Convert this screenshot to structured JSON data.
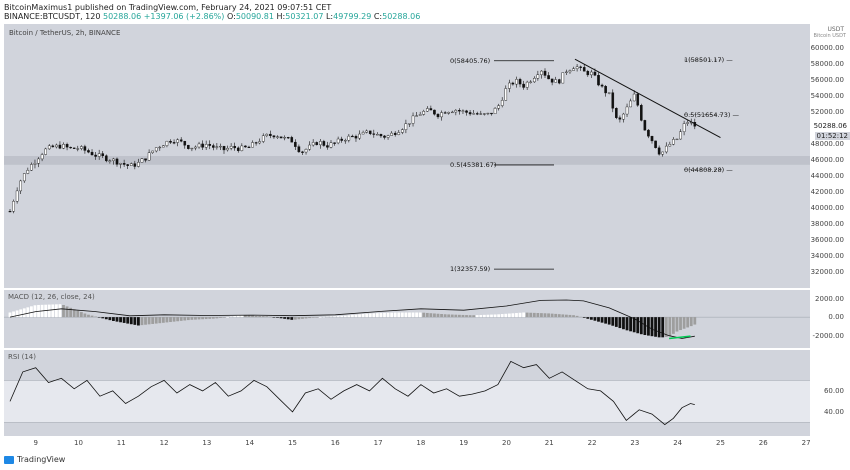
{
  "header": {
    "line1": "BitcoinMaximus1 published on TradingView.com, February 24, 2021 09:07:51 CET",
    "symbol": "BINANCE:BTCUSDT, 120",
    "last": "50288.06",
    "change": "+1397.06 (+2.86%)",
    "o_label": "O:",
    "o": "50090.81",
    "h_label": "H:",
    "h": "50321.07",
    "l_label": "L:",
    "l": "49799.29",
    "c_label": "C:",
    "c": "50288.06"
  },
  "price_pane": {
    "symbol_label": "Bitcoin / TetherUS, 2h, BINANCE",
    "unit": "USDT",
    "unit_sub": "Bitcoin USDT",
    "current_price": "50288.06",
    "timer": "01:52:12",
    "fib_labels": [
      "0(58405.76)",
      "0.5(45381.67)",
      "1(32357.59)",
      "1(58501.17)",
      "0.5(51654.73)",
      "0(44808.28)"
    ]
  },
  "macd_pane": {
    "label": "MACD (12, 26, close, 24)"
  },
  "rsi_pane": {
    "label": "RSI (14)"
  },
  "footer": {
    "brand": "TradingView"
  },
  "colors": {
    "up": "#ffffff",
    "down": "#111111",
    "pane_bg": "#d1d4dc",
    "band": "#e6e8ee",
    "accent_green": "#00c853"
  },
  "chart_data": [
    {
      "type": "candlestick",
      "title": "Bitcoin / TetherUS, 2h, BINANCE",
      "ylabel": "USDT",
      "ylim": [
        30500,
        62500
      ],
      "y_ticks": [
        32000,
        34000,
        36000,
        38000,
        40000,
        42000,
        44000,
        46000,
        48000,
        52000,
        54000,
        56000,
        58000,
        60000
      ],
      "x_ticks": [
        "9",
        "10",
        "11",
        "12",
        "13",
        "14",
        "15",
        "16",
        "17",
        "18",
        "19",
        "20",
        "21",
        "22",
        "23",
        "24",
        "25",
        "26",
        "27"
      ],
      "support_zone": [
        45400,
        46500
      ],
      "fib_levels_left": [
        {
          "label": "0(58405.76)",
          "value": 58405.76
        },
        {
          "label": "0.5(45381.67)",
          "value": 45381.67
        },
        {
          "label": "1(32357.59)",
          "value": 32357.59
        }
      ],
      "fib_levels_right": [
        {
          "label": "1(58501.17)",
          "value": 58501.17
        },
        {
          "label": "0.5(51654.73)",
          "value": 51654.73
        },
        {
          "label": "0(44808.28)",
          "value": 44808.28
        }
      ],
      "trendline": {
        "from": {
          "day": 21.6,
          "price": 58600
        },
        "to": {
          "day": 25.0,
          "price": 48800
        }
      },
      "close_path": [
        [
          8.4,
          39600
        ],
        [
          8.6,
          43000
        ],
        [
          8.8,
          44800
        ],
        [
          9.0,
          46000
        ],
        [
          9.2,
          47200
        ],
        [
          9.4,
          47600
        ],
        [
          9.6,
          47800
        ],
        [
          9.8,
          47400
        ],
        [
          10.0,
          47500
        ],
        [
          10.2,
          47100
        ],
        [
          10.4,
          46600
        ],
        [
          10.6,
          46300
        ],
        [
          10.8,
          46000
        ],
        [
          11.0,
          45600
        ],
        [
          11.2,
          45200
        ],
        [
          11.4,
          45600
        ],
        [
          11.6,
          46400
        ],
        [
          11.8,
          47500
        ],
        [
          12.0,
          48100
        ],
        [
          12.2,
          48600
        ],
        [
          12.4,
          48200
        ],
        [
          12.6,
          47600
        ],
        [
          12.8,
          47700
        ],
        [
          13.0,
          48000
        ],
        [
          13.2,
          47500
        ],
        [
          13.4,
          47300
        ],
        [
          13.6,
          47600
        ],
        [
          13.8,
          47400
        ],
        [
          14.0,
          47600
        ],
        [
          14.2,
          48400
        ],
        [
          14.4,
          49000
        ],
        [
          14.6,
          49200
        ],
        [
          14.8,
          48700
        ],
        [
          15.0,
          48400
        ],
        [
          15.2,
          47000
        ],
        [
          15.4,
          47600
        ],
        [
          15.6,
          48300
        ],
        [
          15.8,
          47800
        ],
        [
          16.0,
          48100
        ],
        [
          16.2,
          48700
        ],
        [
          16.4,
          48900
        ],
        [
          16.6,
          49100
        ],
        [
          16.8,
          49500
        ],
        [
          17.0,
          49100
        ],
        [
          17.2,
          48900
        ],
        [
          17.4,
          49500
        ],
        [
          17.6,
          50200
        ],
        [
          17.8,
          51100
        ],
        [
          18.0,
          51900
        ],
        [
          18.2,
          52200
        ],
        [
          18.4,
          51700
        ],
        [
          18.6,
          52200
        ],
        [
          18.8,
          52300
        ],
        [
          19.0,
          52000
        ],
        [
          19.2,
          51900
        ],
        [
          19.4,
          51600
        ],
        [
          19.6,
          51700
        ],
        [
          19.8,
          52600
        ],
        [
          20.0,
          55000
        ],
        [
          20.2,
          55900
        ],
        [
          20.4,
          55300
        ],
        [
          20.6,
          56200
        ],
        [
          20.8,
          57400
        ],
        [
          21.0,
          56100
        ],
        [
          21.2,
          55700
        ],
        [
          21.4,
          57200
        ],
        [
          21.6,
          57800
        ],
        [
          21.8,
          57000
        ],
        [
          22.0,
          56800
        ],
        [
          22.2,
          55200
        ],
        [
          22.4,
          54100
        ],
        [
          22.6,
          50500
        ],
        [
          22.8,
          52300
        ],
        [
          23.0,
          54200
        ],
        [
          23.2,
          50200
        ],
        [
          23.4,
          48500
        ],
        [
          23.6,
          46700
        ],
        [
          23.8,
          47900
        ],
        [
          24.0,
          48700
        ],
        [
          24.2,
          50900
        ],
        [
          24.4,
          50288
        ]
      ]
    },
    {
      "type": "bar",
      "title": "MACD (12, 26, close, 24)",
      "ylim": [
        -3000,
        2600
      ],
      "y_ticks": [
        2000,
        0,
        -2000
      ],
      "macd_path": [
        [
          8.4,
          0
        ],
        [
          9.0,
          600
        ],
        [
          9.6,
          900
        ],
        [
          10.4,
          600
        ],
        [
          11.2,
          150
        ],
        [
          12.0,
          250
        ],
        [
          13.0,
          180
        ],
        [
          14.0,
          220
        ],
        [
          15.0,
          160
        ],
        [
          16.0,
          250
        ],
        [
          17.0,
          600
        ],
        [
          18.0,
          900
        ],
        [
          19.0,
          750
        ],
        [
          20.0,
          1200
        ],
        [
          20.8,
          1800
        ],
        [
          21.4,
          1850
        ],
        [
          21.8,
          1750
        ],
        [
          22.4,
          1000
        ],
        [
          23.0,
          -200
        ],
        [
          23.4,
          -1300
        ],
        [
          23.8,
          -2000
        ],
        [
          24.1,
          -2300
        ],
        [
          24.4,
          -2050
        ]
      ],
      "histogram": [
        [
          8.4,
          500
        ],
        [
          9.0,
          1300
        ],
        [
          9.6,
          1400
        ],
        [
          10.2,
          300
        ],
        [
          10.8,
          -400
        ],
        [
          11.4,
          -900
        ],
        [
          12.0,
          -600
        ],
        [
          12.6,
          -300
        ],
        [
          13.2,
          -150
        ],
        [
          13.8,
          200
        ],
        [
          14.4,
          100
        ],
        [
          15.0,
          -300
        ],
        [
          15.6,
          0
        ],
        [
          16.2,
          150
        ],
        [
          16.8,
          400
        ],
        [
          17.4,
          500
        ],
        [
          18.0,
          500
        ],
        [
          18.6,
          300
        ],
        [
          19.2,
          200
        ],
        [
          19.8,
          300
        ],
        [
          20.4,
          500
        ],
        [
          21.0,
          400
        ],
        [
          21.6,
          200
        ],
        [
          22.0,
          -300
        ],
        [
          22.4,
          -800
        ],
        [
          22.8,
          -1400
        ],
        [
          23.2,
          -1900
        ],
        [
          23.6,
          -2200
        ],
        [
          23.8,
          -2100
        ],
        [
          24.0,
          -1500
        ],
        [
          24.3,
          -1000
        ],
        [
          24.4,
          -800
        ]
      ]
    },
    {
      "type": "line",
      "title": "RSI (14)",
      "ylim": [
        20,
        96
      ],
      "y_ticks": [
        60,
        40
      ],
      "bands": [
        30,
        70
      ],
      "rsi_path": [
        [
          8.4,
          50
        ],
        [
          8.7,
          78
        ],
        [
          9.0,
          82
        ],
        [
          9.3,
          68
        ],
        [
          9.6,
          72
        ],
        [
          9.9,
          62
        ],
        [
          10.2,
          70
        ],
        [
          10.5,
          55
        ],
        [
          10.8,
          60
        ],
        [
          11.1,
          48
        ],
        [
          11.4,
          55
        ],
        [
          11.7,
          64
        ],
        [
          12.0,
          70
        ],
        [
          12.3,
          58
        ],
        [
          12.6,
          66
        ],
        [
          12.9,
          60
        ],
        [
          13.2,
          68
        ],
        [
          13.5,
          55
        ],
        [
          13.8,
          60
        ],
        [
          14.1,
          70
        ],
        [
          14.4,
          64
        ],
        [
          14.7,
          52
        ],
        [
          15.0,
          40
        ],
        [
          15.3,
          58
        ],
        [
          15.6,
          62
        ],
        [
          15.9,
          52
        ],
        [
          16.2,
          60
        ],
        [
          16.5,
          66
        ],
        [
          16.8,
          60
        ],
        [
          17.1,
          72
        ],
        [
          17.4,
          62
        ],
        [
          17.7,
          55
        ],
        [
          18.0,
          66
        ],
        [
          18.3,
          58
        ],
        [
          18.6,
          62
        ],
        [
          18.9,
          55
        ],
        [
          19.2,
          57
        ],
        [
          19.5,
          60
        ],
        [
          19.8,
          66
        ],
        [
          20.1,
          88
        ],
        [
          20.4,
          82
        ],
        [
          20.7,
          85
        ],
        [
          21.0,
          72
        ],
        [
          21.3,
          78
        ],
        [
          21.6,
          70
        ],
        [
          21.9,
          62
        ],
        [
          22.2,
          60
        ],
        [
          22.5,
          50
        ],
        [
          22.8,
          32
        ],
        [
          23.1,
          42
        ],
        [
          23.4,
          38
        ],
        [
          23.7,
          28
        ],
        [
          23.9,
          34
        ],
        [
          24.1,
          44
        ],
        [
          24.3,
          48
        ],
        [
          24.4,
          47
        ]
      ]
    }
  ]
}
